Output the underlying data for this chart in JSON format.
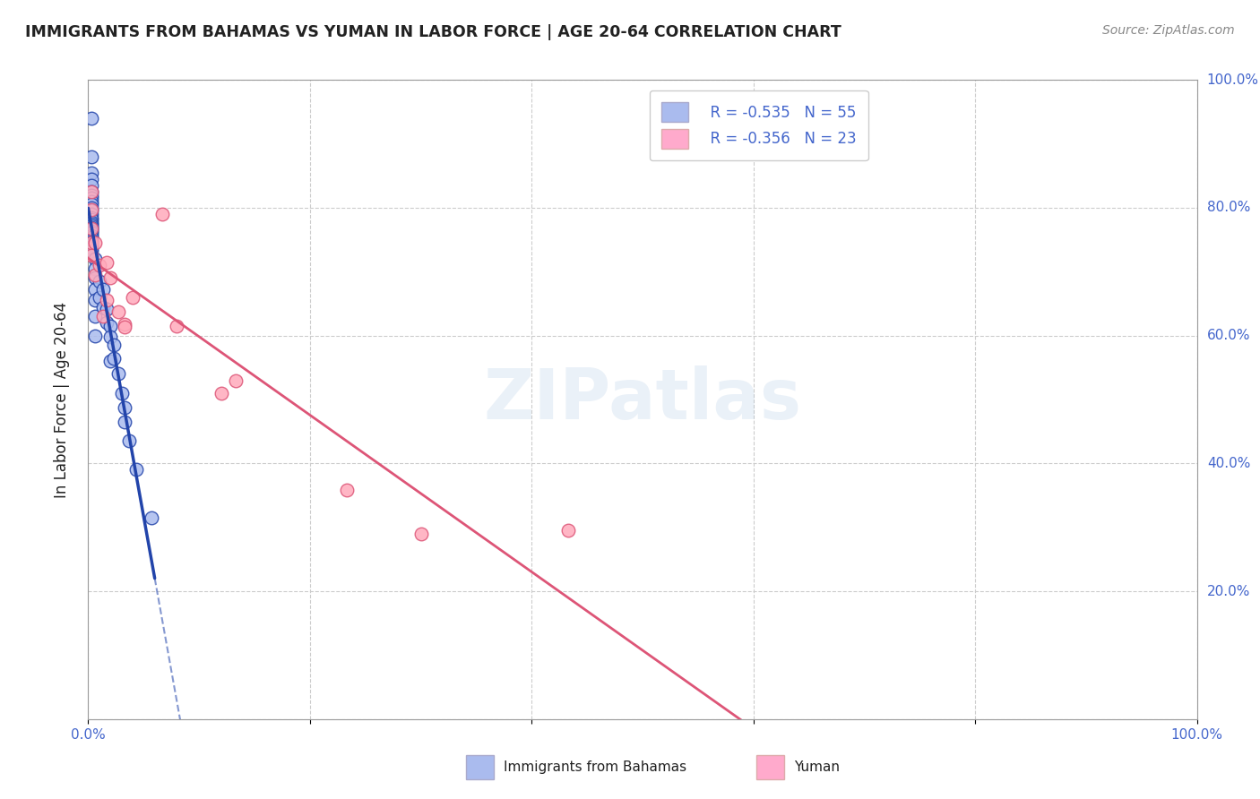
{
  "title": "IMMIGRANTS FROM BAHAMAS VS YUMAN IN LABOR FORCE | AGE 20-64 CORRELATION CHART",
  "source": "Source: ZipAtlas.com",
  "ylabel": "In Labor Force | Age 20-64",
  "xlim": [
    0.0,
    1.0
  ],
  "ylim": [
    0.0,
    1.0
  ],
  "ytick_labels": [
    "",
    "20.0%",
    "40.0%",
    "60.0%",
    "80.0%",
    "100.0%"
  ],
  "ytick_values": [
    0.0,
    0.2,
    0.4,
    0.6,
    0.8,
    1.0
  ],
  "xtick_values": [
    0.0,
    0.2,
    0.4,
    0.6,
    0.8,
    1.0
  ],
  "xtick_labels": [
    "0.0%",
    "",
    "",
    "",
    "",
    "100.0%"
  ],
  "legend_r_blue": "R = -0.535",
  "legend_n_blue": "N = 55",
  "legend_r_pink": "R = -0.356",
  "legend_n_pink": "N = 23",
  "watermark": "ZIPatlas",
  "blue_scatter_x": [
    0.003,
    0.003,
    0.003,
    0.003,
    0.003,
    0.003,
    0.003,
    0.003,
    0.003,
    0.003,
    0.003,
    0.003,
    0.003,
    0.003,
    0.003,
    0.003,
    0.003,
    0.003,
    0.003,
    0.003,
    0.003,
    0.003,
    0.003,
    0.003,
    0.003,
    0.003,
    0.003,
    0.003,
    0.003,
    0.003,
    0.006,
    0.006,
    0.006,
    0.006,
    0.006,
    0.006,
    0.006,
    0.01,
    0.01,
    0.013,
    0.013,
    0.017,
    0.017,
    0.02,
    0.02,
    0.02,
    0.023,
    0.023,
    0.027,
    0.03,
    0.033,
    0.033,
    0.037,
    0.043,
    0.057
  ],
  "blue_scatter_y": [
    0.94,
    0.88,
    0.855,
    0.845,
    0.835,
    0.825,
    0.82,
    0.815,
    0.81,
    0.805,
    0.8,
    0.795,
    0.79,
    0.785,
    0.782,
    0.778,
    0.775,
    0.772,
    0.769,
    0.766,
    0.763,
    0.76,
    0.757,
    0.754,
    0.75,
    0.747,
    0.743,
    0.74,
    0.737,
    0.733,
    0.72,
    0.705,
    0.69,
    0.672,
    0.655,
    0.63,
    0.6,
    0.685,
    0.66,
    0.672,
    0.645,
    0.642,
    0.62,
    0.615,
    0.598,
    0.56,
    0.585,
    0.565,
    0.54,
    0.51,
    0.488,
    0.465,
    0.435,
    0.39,
    0.315
  ],
  "pink_scatter_x": [
    0.003,
    0.003,
    0.003,
    0.003,
    0.003,
    0.006,
    0.006,
    0.01,
    0.013,
    0.017,
    0.017,
    0.02,
    0.027,
    0.033,
    0.033,
    0.04,
    0.067,
    0.08,
    0.12,
    0.133,
    0.233,
    0.3,
    0.433
  ],
  "pink_scatter_y": [
    0.825,
    0.797,
    0.768,
    0.745,
    0.725,
    0.745,
    0.695,
    0.71,
    0.63,
    0.715,
    0.655,
    0.69,
    0.638,
    0.618,
    0.613,
    0.66,
    0.79,
    0.615,
    0.51,
    0.53,
    0.358,
    0.29,
    0.295
  ],
  "blue_line_color": "#2244aa",
  "pink_line_color": "#dd5577",
  "blue_scatter_color": "#aabbee",
  "pink_scatter_color": "#ffaabb",
  "blue_legend_color": "#aabbee",
  "pink_legend_color": "#ffaacc",
  "text_color_blue": "#4466cc",
  "grid_color": "#cccccc",
  "background_color": "#ffffff",
  "title_color": "#222222",
  "source_color": "#888888"
}
